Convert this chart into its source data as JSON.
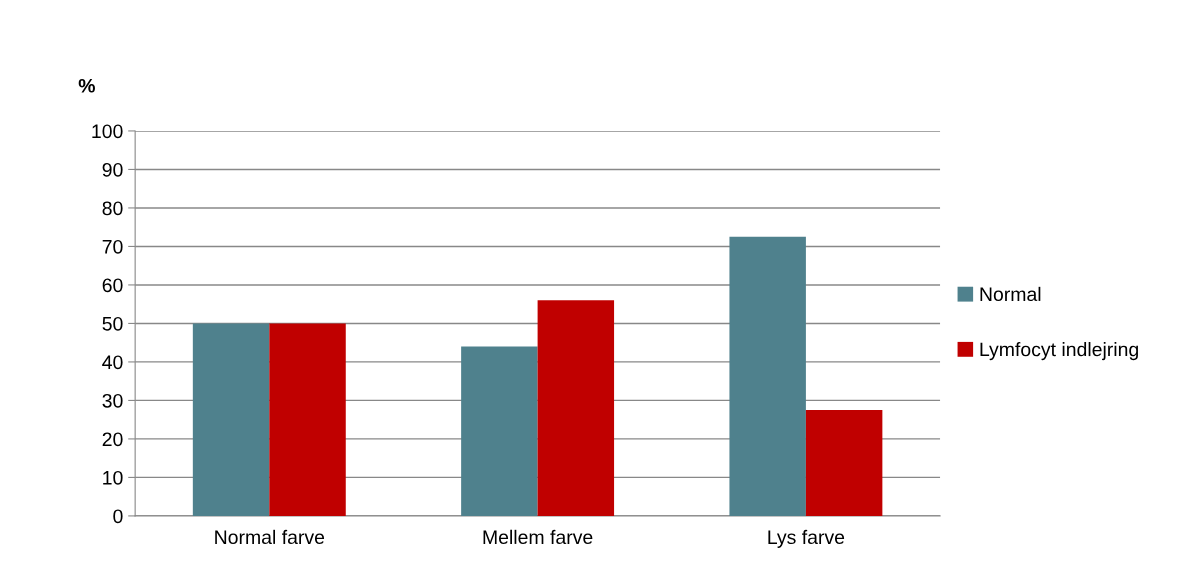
{
  "chart_data": {
    "type": "bar",
    "ylabel": "%",
    "categories": [
      "Normal farve",
      "Mellem farve",
      "Lys farve"
    ],
    "series": [
      {
        "name": "Normal",
        "color": "#4f818d",
        "values": [
          50,
          44,
          72.5
        ]
      },
      {
        "name": "Lymfocyt indlejring",
        "color": "#c00000",
        "values": [
          50,
          56,
          27.5
        ]
      }
    ],
    "ylim": [
      0,
      100
    ],
    "yticks": [
      0,
      10,
      20,
      30,
      40,
      50,
      60,
      70,
      80,
      90,
      100
    ],
    "grid": "y",
    "legend": "right"
  }
}
